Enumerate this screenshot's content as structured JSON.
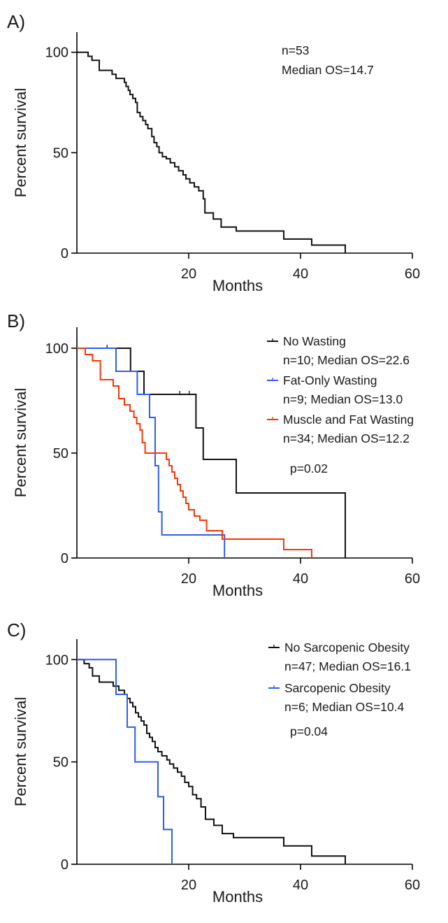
{
  "chart_data": [
    {
      "type": "line",
      "panel_label": "A)",
      "xlabel": "Months",
      "ylabel": "Percent survival",
      "xlim": [
        0,
        60
      ],
      "ylim": [
        0,
        110
      ],
      "xticks": [
        20,
        40,
        60
      ],
      "yticks": [
        0,
        50,
        100
      ],
      "grid": false,
      "annotations": [
        "n=53",
        "Median OS=14.7"
      ],
      "series": [
        {
          "name": "",
          "color": "#111111",
          "x": [
            1.3,
            2.0,
            2.7,
            4.0,
            6.3,
            7.0,
            8.5,
            8.8,
            9.2,
            9.5,
            10.0,
            10.5,
            10.8,
            11.3,
            11.8,
            12.3,
            12.7,
            13.4,
            13.8,
            14.3,
            14.7,
            15.3,
            16.0,
            16.7,
            17.5,
            18.2,
            19.0,
            19.5,
            20.2,
            21.0,
            21.8,
            22.6,
            22.9,
            24.4,
            25.8,
            28.5,
            37.0,
            42.0,
            48.0
          ],
          "y": [
            100,
            98,
            96,
            91,
            89,
            87,
            85,
            83,
            81,
            79,
            77,
            75,
            70,
            68,
            66,
            64,
            62,
            58,
            55,
            53,
            50,
            48,
            47,
            45,
            43,
            41,
            39,
            37,
            35,
            33,
            31,
            27,
            20,
            17,
            13,
            11,
            7,
            4,
            0
          ],
          "censored": []
        }
      ]
    },
    {
      "type": "line",
      "panel_label": "B)",
      "xlabel": "Months",
      "ylabel": "Percent survival",
      "xlim": [
        0,
        60
      ],
      "ylim": [
        0,
        110
      ],
      "xticks": [
        20,
        40,
        60
      ],
      "yticks": [
        0,
        50,
        100
      ],
      "grid": false,
      "legend_position": "top-right",
      "annotations": [
        "p=0.02"
      ],
      "series": [
        {
          "name": "No Wasting",
          "detail": "n=10; Median OS=22.6",
          "color": "#111111",
          "x": [
            9.6,
            12.0,
            21.3,
            22.6,
            28.5,
            48.0
          ],
          "y": [
            89,
            78,
            62,
            47,
            31,
            0
          ],
          "censored": [
            [
              5.4,
              100
            ],
            [
              18.4,
              78
            ],
            [
              20.1,
              78
            ]
          ]
        },
        {
          "name": "Fat-Only Wasting",
          "detail": "n=9; Median OS=13.0",
          "color": "#2a5ef0",
          "x": [
            7.0,
            10.8,
            13.0,
            14.0,
            14.6,
            15.2,
            26.4
          ],
          "y": [
            89,
            78,
            67,
            44,
            22,
            11,
            0
          ],
          "censored": []
        },
        {
          "name": "Muscle and Fat Wasting",
          "detail": "n=34; Median OS=12.2",
          "color": "#ff3300",
          "x": [
            1.5,
            2.8,
            4.2,
            6.5,
            7.5,
            8.5,
            9.5,
            10.2,
            10.7,
            11.3,
            11.7,
            12.2,
            16.0,
            16.5,
            17.0,
            17.5,
            18.0,
            18.5,
            19.0,
            19.5,
            20.0,
            21.0,
            22.0,
            23.2,
            26.0,
            37.0,
            42.0
          ],
          "y": [
            97,
            94,
            85,
            82,
            76,
            73,
            70,
            67,
            64,
            61,
            55,
            50,
            47,
            44,
            41,
            38,
            35,
            32,
            29,
            26,
            23,
            20,
            18,
            13,
            9,
            4,
            0
          ],
          "censored": []
        }
      ]
    },
    {
      "type": "line",
      "panel_label": "C)",
      "xlabel": "Months",
      "ylabel": "Percent survival",
      "xlim": [
        0,
        60
      ],
      "ylim": [
        0,
        110
      ],
      "xticks": [
        20,
        40,
        60
      ],
      "yticks": [
        0,
        50,
        100
      ],
      "grid": false,
      "legend_position": "top-right",
      "annotations": [
        "p=0.04"
      ],
      "series": [
        {
          "name": "No Sarcopenic Obesity",
          "detail": "n=47; Median OS=16.1",
          "color": "#111111",
          "x": [
            1.3,
            2.2,
            2.8,
            4.0,
            6.5,
            7.5,
            8.5,
            9.0,
            9.5,
            10.0,
            10.5,
            11.0,
            11.5,
            12.0,
            12.5,
            13.0,
            13.5,
            14.0,
            14.5,
            15.2,
            16.1,
            16.6,
            17.3,
            18.0,
            18.7,
            19.3,
            20.0,
            20.7,
            21.4,
            22.2,
            23.0,
            24.5,
            26.0,
            28.0,
            37.0,
            42.0,
            48.0
          ],
          "y": [
            98,
            96,
            92,
            89,
            87,
            85,
            83,
            81,
            79,
            77,
            74,
            72,
            70,
            68,
            64,
            62,
            60,
            57,
            55,
            53,
            51,
            49,
            47,
            45,
            43,
            40,
            38,
            34,
            32,
            28,
            22,
            19,
            15,
            13,
            9,
            4,
            0
          ],
          "censored": []
        },
        {
          "name": "Sarcopenic Obesity",
          "detail": "n=6; Median OS=10.4",
          "color": "#2a5ef0",
          "x": [
            7.0,
            9.0,
            10.4,
            14.5,
            15.5,
            17.0
          ],
          "y": [
            83,
            67,
            50,
            33,
            17,
            0
          ],
          "censored": []
        }
      ]
    }
  ]
}
